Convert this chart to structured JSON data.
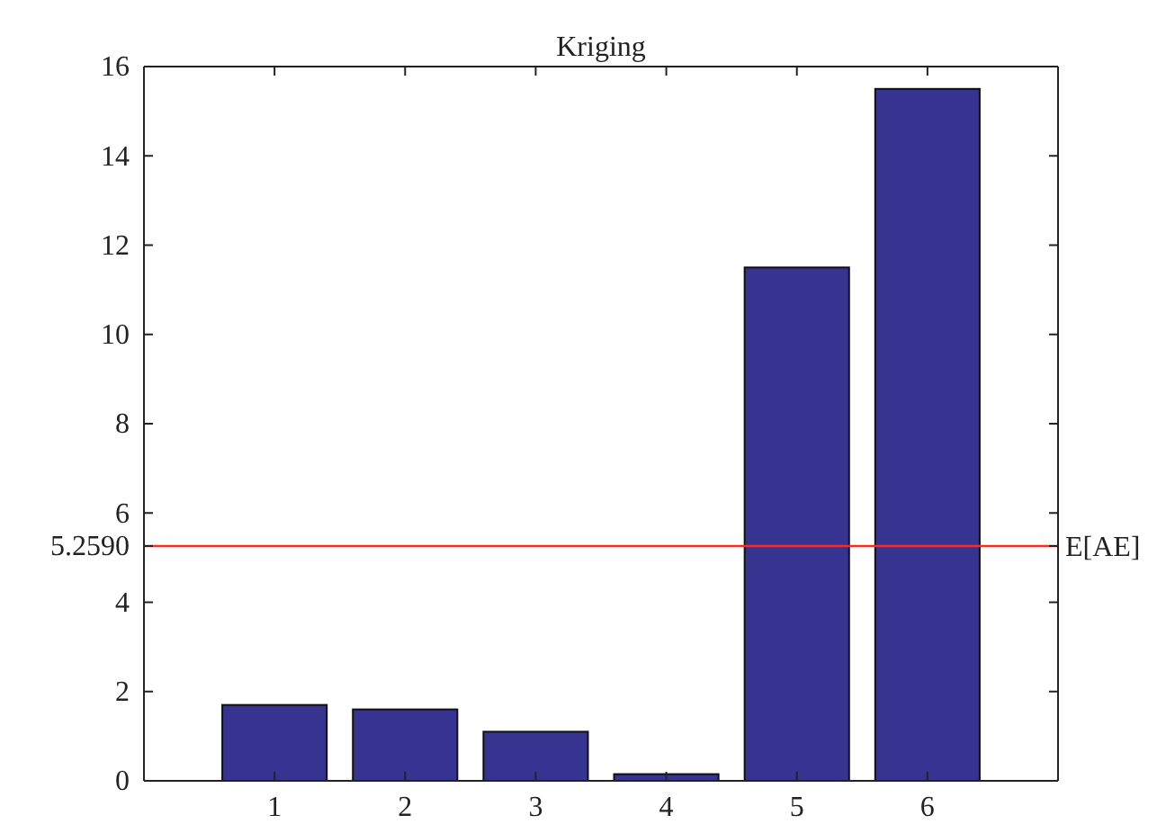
{
  "chart_data": {
    "type": "bar",
    "title": "Kriging",
    "categories": [
      "1",
      "2",
      "3",
      "4",
      "5",
      "6"
    ],
    "values": [
      1.7,
      1.6,
      1.1,
      0.15,
      11.5,
      15.5
    ],
    "color": "#363391",
    "ylim": [
      0,
      16
    ],
    "yticks": [
      0,
      2,
      4,
      {
        "value": 5.259,
        "label": "5.2590"
      },
      6,
      8,
      10,
      12,
      14,
      16
    ],
    "ref_lines": [
      {
        "axis": "y",
        "value": 5.259,
        "label": "E[AE]",
        "color": "#ff2a1a"
      }
    ],
    "grid": false
  }
}
